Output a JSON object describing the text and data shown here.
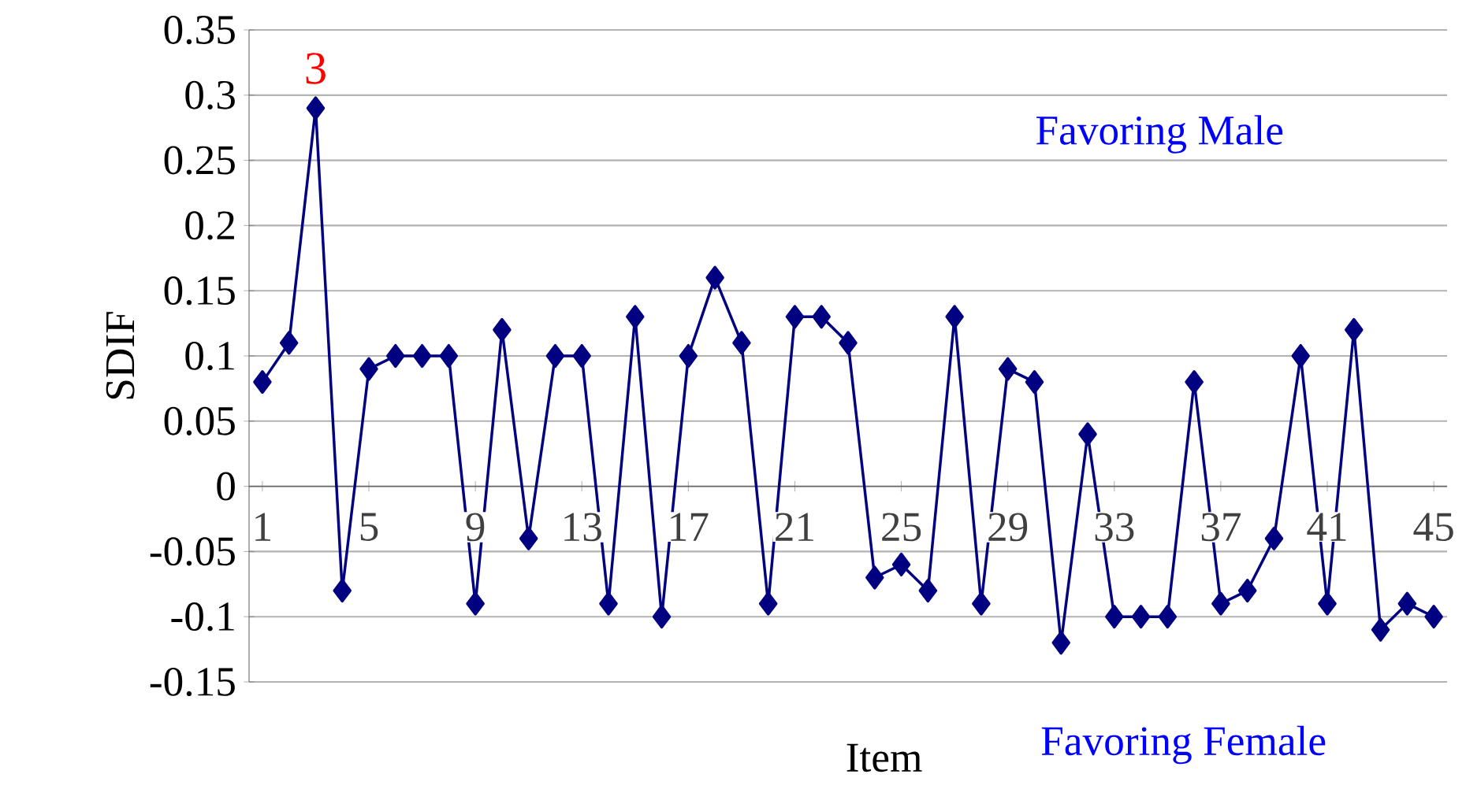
{
  "chart_data": {
    "type": "line",
    "xlabel": "Item",
    "ylabel": "SDIF",
    "x": [
      1,
      2,
      3,
      4,
      5,
      6,
      7,
      8,
      9,
      10,
      11,
      12,
      13,
      14,
      15,
      16,
      17,
      18,
      19,
      20,
      21,
      22,
      23,
      24,
      25,
      26,
      27,
      28,
      29,
      30,
      31,
      32,
      33,
      34,
      35,
      36,
      37,
      38,
      39,
      40,
      41,
      42,
      43,
      44,
      45
    ],
    "series": [
      {
        "color": "#000080",
        "values": [
          0.08,
          0.11,
          0.29,
          -0.08,
          0.09,
          0.1,
          0.1,
          0.1,
          -0.09,
          0.12,
          -0.04,
          0.1,
          0.1,
          -0.09,
          0.13,
          -0.1,
          0.1,
          0.16,
          0.11,
          -0.09,
          0.13,
          0.13,
          0.11,
          -0.07,
          -0.06,
          -0.08,
          0.13,
          -0.09,
          0.09,
          0.08,
          -0.12,
          0.04,
          -0.1,
          -0.1,
          -0.1,
          0.08,
          -0.09,
          -0.08,
          -0.04,
          0.1,
          -0.09,
          0.12,
          -0.11,
          -0.09,
          -0.1
        ]
      }
    ],
    "xlim": [
      0.5,
      45.5
    ],
    "xticks": [
      1,
      5,
      9,
      13,
      17,
      21,
      25,
      29,
      33,
      37,
      41,
      45
    ],
    "ylim": [
      -0.15,
      0.35
    ],
    "yticks": [
      -0.15,
      -0.1,
      -0.05,
      0,
      0.05,
      0.1,
      0.15,
      0.2,
      0.25,
      0.3,
      0.35
    ],
    "grid": "y",
    "marker": "diamond",
    "line_style": "solid",
    "legend": false,
    "annotations": [
      {
        "text": "3",
        "x": 3,
        "y": 0.29
      },
      "Favoring Male",
      "Favoring Female"
    ]
  }
}
